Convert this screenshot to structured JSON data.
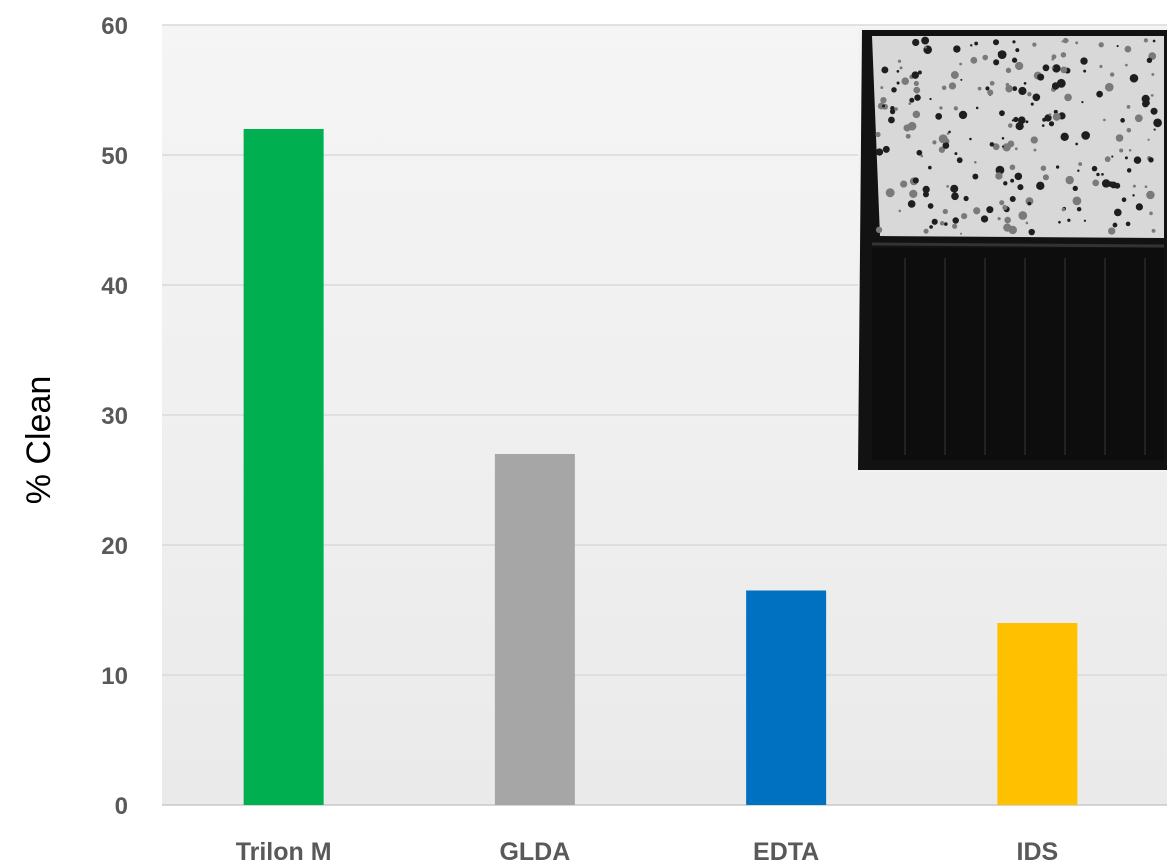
{
  "chart_data": {
    "type": "bar",
    "title": "",
    "xlabel": "",
    "ylabel": "% Clean",
    "ylim": [
      0,
      60
    ],
    "yticks": [
      0,
      10,
      20,
      30,
      40,
      50,
      60
    ],
    "grid": true,
    "categories": [
      "Trilon M",
      "GLDA",
      "EDTA",
      "IDS"
    ],
    "values": [
      52,
      27,
      16.5,
      14
    ],
    "colors": [
      "#00B050",
      "#A6A6A6",
      "#0070C0",
      "#FFC000"
    ]
  },
  "inset_image": {
    "icon": "cleaned-tile-photo-icon"
  }
}
